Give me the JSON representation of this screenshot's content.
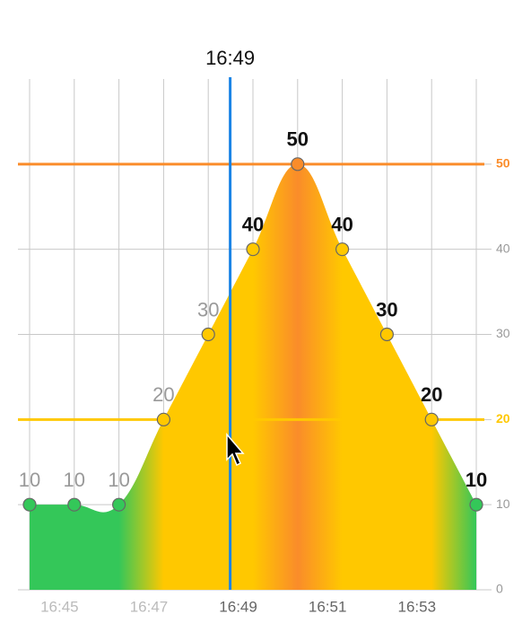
{
  "chart_data": {
    "type": "area",
    "x": [
      1004.33,
      1005.33,
      1006.33,
      1007.33,
      1008.33,
      1009.33,
      1010.33,
      1011.33,
      1012.33,
      1013.33,
      1014.33
    ],
    "values": [
      10,
      10,
      10,
      20,
      30,
      40,
      50,
      40,
      30,
      20,
      10
    ],
    "xlim": [
      1004.33,
      1014.33
    ],
    "xticks": [
      {
        "value": 1005,
        "label": "16:45"
      },
      {
        "value": 1007,
        "label": "16:47"
      },
      {
        "value": 1009,
        "label": "16:49"
      },
      {
        "value": 1011,
        "label": "16:51"
      },
      {
        "value": 1013,
        "label": "16:53"
      }
    ],
    "ylim": [
      0,
      60
    ],
    "yticks": [
      0,
      10,
      20,
      30,
      40,
      50
    ],
    "base_color": "#34c759",
    "thresholds": [
      {
        "value": 20,
        "color": "#ffc800"
      },
      {
        "value": 50,
        "color": "#fa8c2a"
      }
    ],
    "cursor": {
      "value": 1008.82,
      "label": "16:49",
      "color": "#1a84e6"
    },
    "grid": true
  }
}
